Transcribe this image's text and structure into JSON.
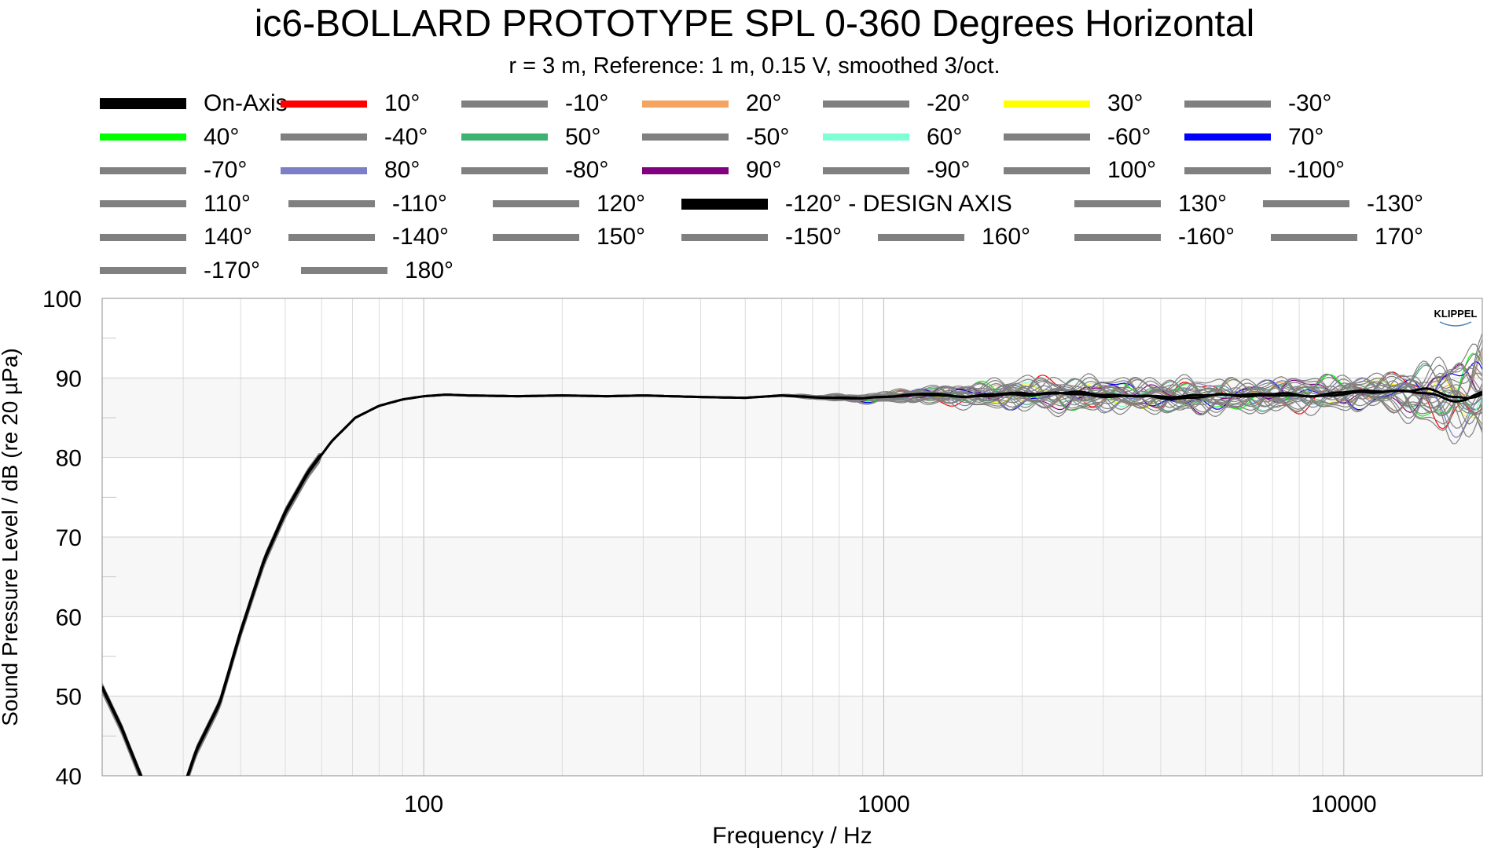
{
  "chart_data": {
    "type": "line",
    "title": "ic6-BOLLARD PROTOTYPE SPL 0-360 Degrees Horizontal",
    "subtitle": "r = 3 m,  Reference: 1 m, 0.15 V, smoothed 3/oct.",
    "xlabel": "Frequency / Hz",
    "ylabel": "Sound Pressure Level / dB (re 20 µPa)",
    "xscale": "log",
    "xlim": [
      20,
      20000
    ],
    "ylim": [
      40,
      100
    ],
    "x_ticks": [
      100,
      1000,
      10000
    ],
    "x_tick_labels": [
      "100",
      "1000",
      "10000"
    ],
    "y_ticks": [
      40,
      50,
      60,
      70,
      80,
      90,
      100
    ],
    "y_tick_labels": [
      "40",
      "50",
      "60",
      "70",
      "80",
      "90",
      "100"
    ],
    "grid": true,
    "legend_position": "top",
    "watermark": "KLIPPEL",
    "base_curve": {
      "x": [
        20,
        22,
        25,
        28,
        32,
        36,
        40,
        45,
        50,
        56,
        63,
        71,
        80,
        90,
        100,
        112,
        125,
        160,
        200,
        250,
        300,
        400,
        500,
        600,
        700,
        800,
        900,
        1000,
        1200,
        1500,
        2000,
        2500,
        3000,
        4000,
        5000,
        6000,
        8000,
        10000,
        12500,
        15000,
        17000,
        18500,
        20000
      ],
      "y": [
        51,
        46,
        38,
        33,
        43,
        49,
        58,
        67,
        73,
        78,
        82,
        85,
        86.5,
        87.3,
        87.7,
        87.9,
        87.8,
        87.7,
        87.8,
        87.7,
        87.8,
        87.6,
        87.5,
        87.8,
        87.6,
        87.5,
        87.4,
        87.6,
        87.9,
        87.8,
        88.0,
        87.9,
        87.9,
        87.7,
        87.6,
        87.8,
        87.9,
        88.1,
        88.3,
        88.0,
        87.8,
        87.7,
        88.5
      ]
    },
    "series": [
      {
        "name": "On-Axis",
        "color": "#000000",
        "thick": true,
        "amp": 0.25,
        "seed": 0
      },
      {
        "name": "10°",
        "color": "#ff0000",
        "amp": 1.6,
        "seed": 1
      },
      {
        "name": "-10°",
        "color": "#808080",
        "amp": 1.0,
        "seed": 2
      },
      {
        "name": "20°",
        "color": "#f4a460",
        "amp": 1.3,
        "seed": 3
      },
      {
        "name": "-20°",
        "color": "#808080",
        "amp": 1.1,
        "seed": 4
      },
      {
        "name": "30°",
        "color": "#ffff00",
        "amp": 1.3,
        "seed": 5
      },
      {
        "name": "-30°",
        "color": "#808080",
        "amp": 1.1,
        "seed": 6
      },
      {
        "name": "40°",
        "color": "#00ff00",
        "amp": 1.5,
        "seed": 7
      },
      {
        "name": "-40°",
        "color": "#808080",
        "amp": 1.2,
        "seed": 8
      },
      {
        "name": "50°",
        "color": "#3cb371",
        "amp": 1.3,
        "seed": 9
      },
      {
        "name": "-50°",
        "color": "#808080",
        "amp": 1.2,
        "seed": 10
      },
      {
        "name": "60°",
        "color": "#7fffd4",
        "amp": 1.3,
        "seed": 11
      },
      {
        "name": "-60°",
        "color": "#808080",
        "amp": 1.3,
        "seed": 12
      },
      {
        "name": "70°",
        "color": "#0000ff",
        "amp": 1.4,
        "seed": 13
      },
      {
        "name": "-70°",
        "color": "#808080",
        "amp": 1.3,
        "seed": 14
      },
      {
        "name": "80°",
        "color": "#7b7fc6",
        "amp": 1.4,
        "seed": 15
      },
      {
        "name": "-80°",
        "color": "#808080",
        "amp": 1.3,
        "seed": 16
      },
      {
        "name": "90°",
        "color": "#800080",
        "amp": 1.4,
        "seed": 17
      },
      {
        "name": "-90°",
        "color": "#808080",
        "amp": 1.4,
        "seed": 18
      },
      {
        "name": "100°",
        "color": "#808080",
        "amp": 1.4,
        "seed": 19
      },
      {
        "name": "-100°",
        "color": "#808080",
        "amp": 1.4,
        "seed": 20
      },
      {
        "name": "110°",
        "color": "#808080",
        "amp": 1.5,
        "seed": 21
      },
      {
        "name": "-110°",
        "color": "#808080",
        "amp": 1.5,
        "seed": 22
      },
      {
        "name": "120°",
        "color": "#808080",
        "amp": 1.5,
        "seed": 23
      },
      {
        "name": "-120° - DESIGN AXIS",
        "color": "#000000",
        "thick": true,
        "amp": 0.2,
        "seed": 24
      },
      {
        "name": "130°",
        "color": "#808080",
        "amp": 1.6,
        "seed": 25
      },
      {
        "name": "-130°",
        "color": "#808080",
        "amp": 1.6,
        "seed": 26
      },
      {
        "name": "140°",
        "color": "#808080",
        "amp": 1.6,
        "seed": 27
      },
      {
        "name": "-140°",
        "color": "#808080",
        "amp": 1.6,
        "seed": 28
      },
      {
        "name": "150°",
        "color": "#808080",
        "amp": 1.7,
        "seed": 29
      },
      {
        "name": "-150°",
        "color": "#808080",
        "amp": 1.7,
        "seed": 30
      },
      {
        "name": "160°",
        "color": "#808080",
        "amp": 1.7,
        "seed": 31
      },
      {
        "name": "-160°",
        "color": "#808080",
        "amp": 1.7,
        "seed": 32
      },
      {
        "name": "170°",
        "color": "#808080",
        "amp": 1.8,
        "seed": 33
      },
      {
        "name": "-170°",
        "color": "#808080",
        "amp": 1.8,
        "seed": 34
      },
      {
        "name": "180°",
        "color": "#808080",
        "amp": 1.8,
        "seed": 35
      }
    ]
  }
}
